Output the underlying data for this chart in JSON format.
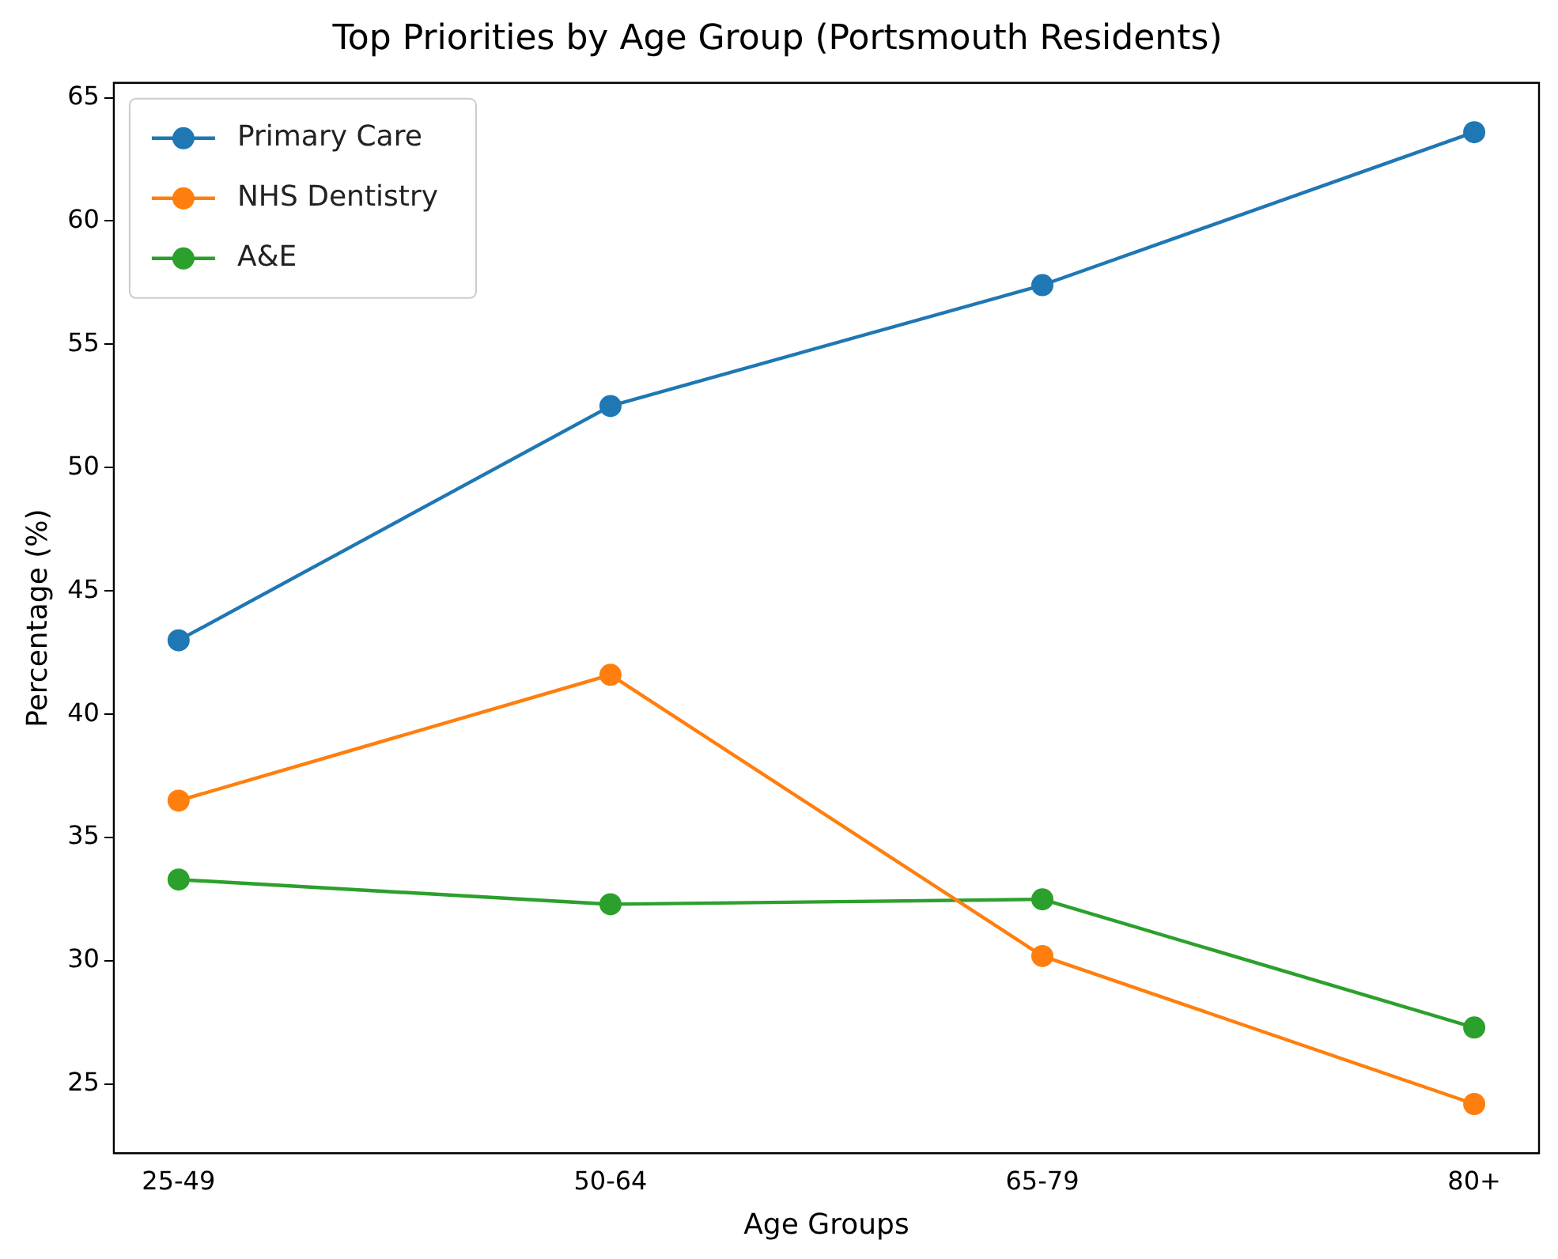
{
  "chart_data": {
    "type": "line",
    "title": "Top Priorities by Age Group (Portsmouth Residents)",
    "xlabel": "Age Groups",
    "ylabel": "Percentage (%)",
    "categories": [
      "25-49",
      "50-64",
      "65-79",
      "80+"
    ],
    "series": [
      {
        "name": "Primary Care",
        "color": "#1f77b4",
        "values": [
          43.0,
          52.5,
          57.4,
          63.6
        ]
      },
      {
        "name": "NHS Dentistry",
        "color": "#ff7f0e",
        "values": [
          36.5,
          41.6,
          30.2,
          24.2
        ]
      },
      {
        "name": "A&E",
        "color": "#2ca02c",
        "values": [
          33.3,
          32.3,
          32.5,
          27.3
        ]
      }
    ],
    "ylim": [
      22.2,
      65.6
    ],
    "yticks": [
      25,
      30,
      35,
      40,
      45,
      50,
      55,
      60,
      65
    ],
    "grid": false,
    "legend": "top left",
    "marker": "circle",
    "line_style": "solid"
  }
}
